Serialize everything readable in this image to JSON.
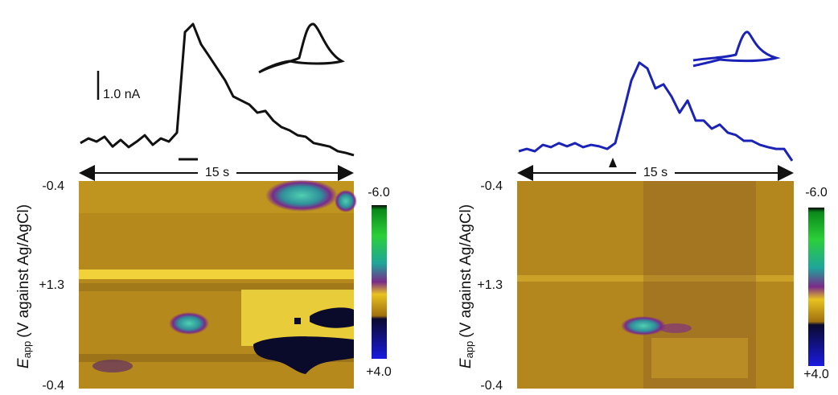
{
  "panels": [
    {
      "trace_color": "#111111",
      "trace": [
        0.06,
        0.22,
        0.11,
        0.28,
        -0.06,
        0.17,
        -0.08,
        0.11,
        0.33,
        0,
        0.22,
        0.11,
        0.42,
        3.89,
        4.17,
        3.47,
        3.06,
        2.64,
        2.22,
        1.67,
        1.53,
        1.39,
        1.11,
        1.17,
        0.83,
        0.61,
        0.5,
        0.33,
        0.28,
        0.06,
        0,
        -0.06,
        -0.22,
        -0.28,
        -0.36
      ],
      "scale_bar": "1.0 nA",
      "time_label": "15 s",
      "axis_label": {
        "symbol": "E",
        "subscript": "app",
        "text": "(V against Ag/AgCl)"
      },
      "y_labels": [
        "-0.4",
        "+1.3",
        "-0.4"
      ],
      "colorbar_labels": [
        "-6.0",
        "+4.0"
      ]
    },
    {
      "trace_color": "#1a22b8",
      "trace": [
        0,
        0.08,
        0,
        0.22,
        0.14,
        0.28,
        0.17,
        0.28,
        0.14,
        0.22,
        0.17,
        0.08,
        0.28,
        1.33,
        2.44,
        3.06,
        2.86,
        2.17,
        2.31,
        1.89,
        1.33,
        1.75,
        1.06,
        1.06,
        0.78,
        0.92,
        0.64,
        0.56,
        0.36,
        0.36,
        0.22,
        0.14,
        0.08,
        0.08,
        -0.33
      ],
      "time_label": "15 s",
      "axis_label": {
        "symbol": "E",
        "subscript": "app",
        "text": "(V against Ag/AgCl)"
      },
      "y_labels": [
        "-0.4",
        "+1.3",
        "-0.4"
      ],
      "colorbar_labels": [
        "-6.0",
        "+4.0"
      ]
    }
  ]
}
